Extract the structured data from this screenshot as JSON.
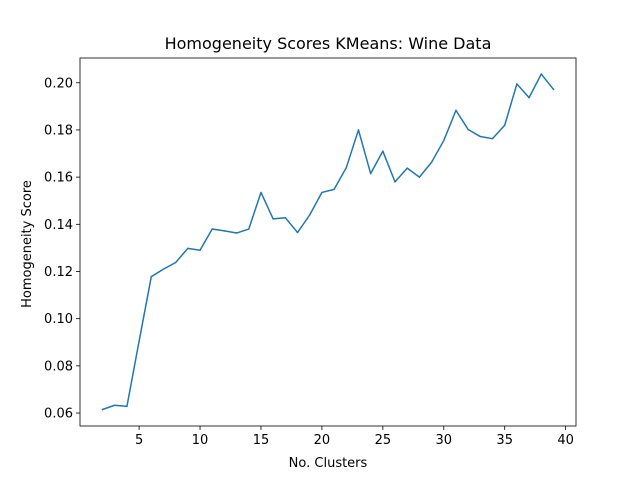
{
  "chart_data": {
    "type": "line",
    "title": "Homogeneity Scores KMeans: Wine Data",
    "xlabel": "No. Clusters",
    "ylabel": "Homogeneity Score",
    "xlim": [
      0.15,
      40.85
    ],
    "ylim": [
      0.0545,
      0.2105
    ],
    "xticks": [
      5,
      10,
      15,
      20,
      25,
      30,
      35,
      40
    ],
    "yticks": [
      0.06,
      0.08,
      0.1,
      0.12,
      0.14,
      0.16,
      0.18,
      0.2
    ],
    "xtick_labels": [
      "5",
      "10",
      "15",
      "20",
      "25",
      "30",
      "35",
      "40"
    ],
    "ytick_labels": [
      "0.06",
      "0.08",
      "0.10",
      "0.12",
      "0.14",
      "0.16",
      "0.18",
      "0.20"
    ],
    "grid": false,
    "legend": "none",
    "series": [
      {
        "color": "#1f77b4",
        "x": [
          2,
          3,
          4,
          5,
          6,
          7,
          8,
          9,
          10,
          11,
          12,
          13,
          14,
          15,
          16,
          17,
          18,
          19,
          20,
          21,
          22,
          23,
          24,
          25,
          26,
          27,
          28,
          29,
          30,
          31,
          32,
          33,
          34,
          35,
          36,
          37,
          38,
          39
        ],
        "values": [
          0.0615,
          0.0633,
          0.0628,
          0.0905,
          0.1178,
          0.121,
          0.1238,
          0.1298,
          0.129,
          0.138,
          0.1372,
          0.1363,
          0.138,
          0.1535,
          0.1423,
          0.1428,
          0.1365,
          0.144,
          0.1535,
          0.1548,
          0.164,
          0.18,
          0.1615,
          0.171,
          0.158,
          0.1638,
          0.16,
          0.1663,
          0.1755,
          0.1883,
          0.1802,
          0.1772,
          0.1763,
          0.182,
          0.1995,
          0.1937,
          0.2037,
          0.1972
        ]
      }
    ]
  }
}
